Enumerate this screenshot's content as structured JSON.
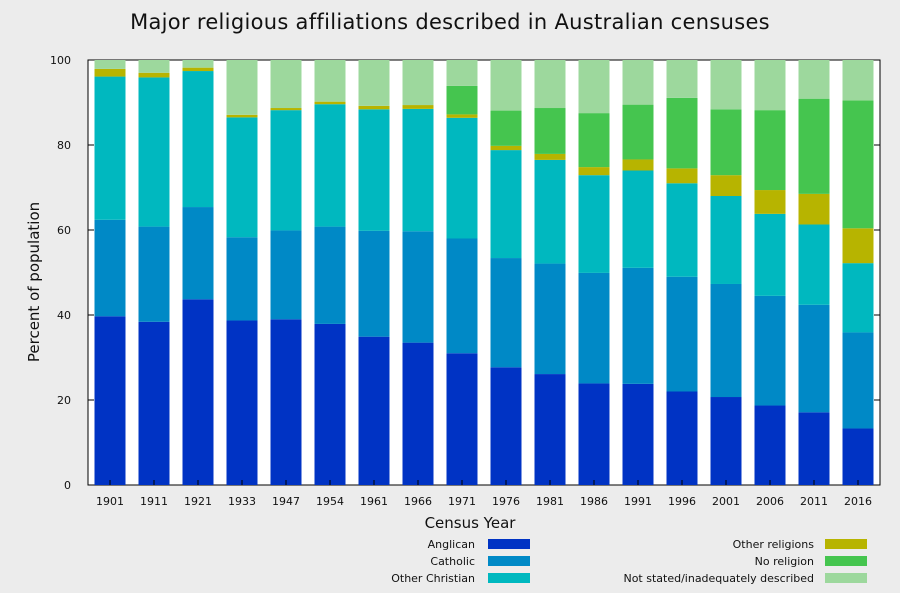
{
  "chart_data": {
    "type": "bar",
    "stacked": true,
    "title": "Major religious affiliations described in Australian censuses",
    "xlabel": "Census Year",
    "ylabel": "Percent of population",
    "ylim": [
      0,
      100
    ],
    "yticks": [
      "0",
      "20",
      "40",
      "60",
      "80",
      "100"
    ],
    "grid": false,
    "legend_position": "bottom",
    "categories": [
      "1901",
      "1911",
      "1921",
      "1933",
      "1947",
      "1954",
      "1961",
      "1966",
      "1971",
      "1976",
      "1981",
      "1986",
      "1991",
      "1996",
      "2001",
      "2006",
      "2011",
      "2016"
    ],
    "series": [
      {
        "name": "Anglican",
        "color": "#0033c4",
        "values": [
          39.7,
          38.4,
          43.7,
          38.7,
          39.0,
          37.9,
          34.9,
          33.5,
          31.0,
          27.7,
          26.1,
          23.9,
          23.8,
          22.0,
          20.7,
          18.7,
          17.1,
          13.3
        ]
      },
      {
        "name": "Catholic",
        "color": "#0089c6",
        "values": [
          22.7,
          22.4,
          21.7,
          19.6,
          20.9,
          22.9,
          24.9,
          26.2,
          27.0,
          25.7,
          26.0,
          26.0,
          27.3,
          27.0,
          26.6,
          25.8,
          25.3,
          22.6
        ]
      },
      {
        "name": "Other Christian",
        "color": "#00b8bf",
        "values": [
          33.7,
          35.1,
          32.0,
          28.2,
          28.3,
          28.8,
          28.6,
          28.8,
          28.4,
          25.4,
          24.4,
          23.0,
          22.9,
          22.0,
          20.7,
          19.3,
          18.9,
          16.3
        ]
      },
      {
        "name": "Other religions",
        "color": "#b7b400",
        "values": [
          1.8,
          1.1,
          0.8,
          0.6,
          0.5,
          0.6,
          0.8,
          0.9,
          0.8,
          1.0,
          1.4,
          1.9,
          2.6,
          3.5,
          4.9,
          5.6,
          7.2,
          8.2
        ]
      },
      {
        "name": "No religion",
        "color": "#45c54f",
        "values": [
          0.0,
          0.0,
          0.0,
          0.0,
          0.0,
          0.0,
          0.0,
          0.0,
          6.7,
          8.3,
          10.8,
          12.7,
          12.9,
          16.6,
          15.5,
          18.8,
          22.4,
          30.1
        ]
      },
      {
        "name": "Not stated/inadequately described",
        "color": "#9dd89d",
        "values": [
          2.1,
          3.0,
          1.8,
          12.9,
          11.3,
          9.8,
          10.8,
          10.6,
          6.1,
          11.9,
          11.3,
          12.5,
          10.5,
          8.9,
          11.6,
          11.8,
          9.1,
          9.5
        ]
      }
    ]
  }
}
